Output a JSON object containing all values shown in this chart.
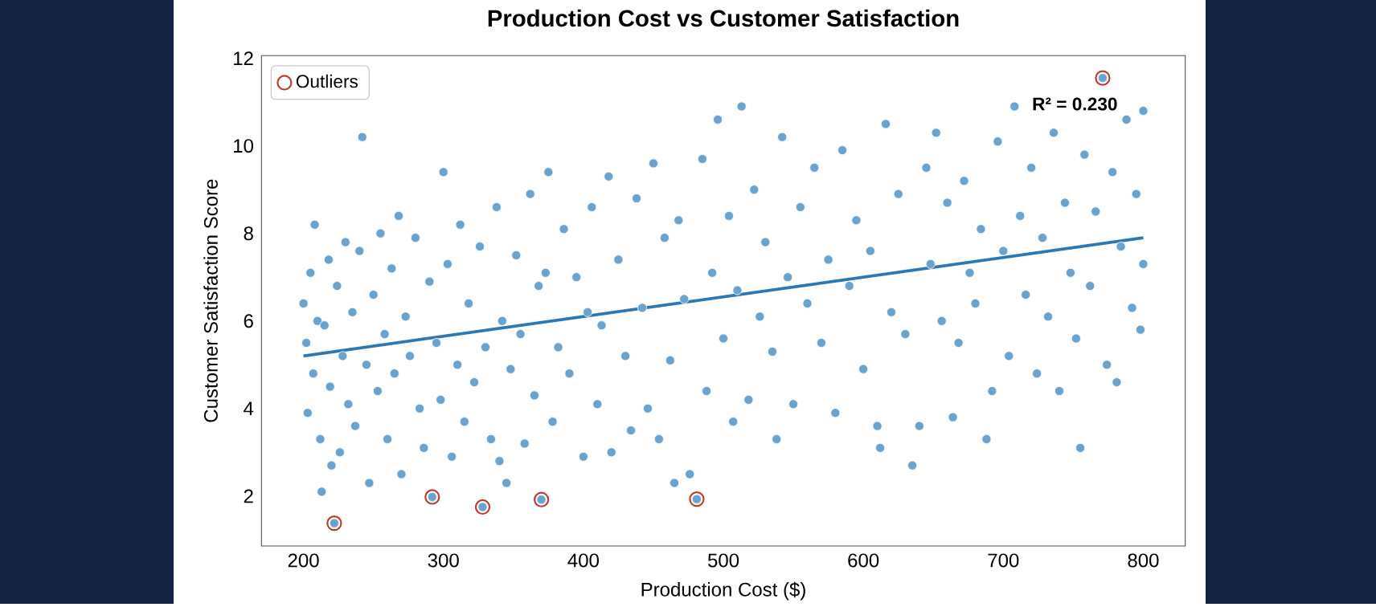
{
  "chart_data": {
    "type": "scatter",
    "title": "Production Cost vs Customer Satisfaction",
    "xlabel": "Production Cost ($)",
    "ylabel": "Customer Satisfaction Score",
    "xlim": [
      170,
      830
    ],
    "ylim": [
      0.86,
      12.06
    ],
    "xticks": [
      200,
      300,
      400,
      500,
      600,
      700,
      800
    ],
    "yticks": [
      2,
      4,
      6,
      8,
      10,
      12
    ],
    "legend": "top left",
    "marker": "circle",
    "annotations": [
      "R² = 0.230"
    ],
    "series": [
      {
        "color": "#6aa3cf",
        "x": [
          200,
          202,
          203,
          205,
          207,
          208,
          210,
          212,
          213,
          215,
          218,
          219,
          220,
          222,
          224,
          226,
          228,
          230,
          232,
          235,
          237,
          240,
          242,
          245,
          247,
          250,
          253,
          255,
          258,
          260,
          263,
          265,
          268,
          270,
          273,
          276,
          280,
          283,
          286,
          290,
          292,
          295,
          298,
          300,
          303,
          306,
          310,
          312,
          315,
          318,
          322,
          326,
          328,
          330,
          334,
          338,
          340,
          342,
          345,
          348,
          352,
          355,
          358,
          362,
          365,
          368,
          370,
          373,
          375,
          378,
          382,
          386,
          390,
          395,
          400,
          403,
          406,
          410,
          413,
          418,
          420,
          425,
          430,
          434,
          438,
          442,
          446,
          450,
          454,
          458,
          462,
          465,
          468,
          472,
          476,
          481,
          485,
          488,
          492,
          496,
          500,
          504,
          507,
          510,
          513,
          518,
          522,
          526,
          530,
          535,
          538,
          542,
          546,
          550,
          555,
          560,
          565,
          570,
          575,
          580,
          585,
          590,
          595,
          600,
          605,
          610,
          612,
          616,
          620,
          625,
          630,
          635,
          640,
          645,
          648,
          652,
          656,
          660,
          664,
          668,
          672,
          676,
          680,
          684,
          688,
          692,
          696,
          700,
          704,
          708,
          712,
          716,
          720,
          724,
          728,
          732,
          736,
          740,
          744,
          748,
          752,
          755,
          758,
          762,
          766,
          771,
          774,
          778,
          781,
          784,
          788,
          792,
          795,
          798,
          800,
          800
        ],
        "values": [
          6.4,
          5.5,
          3.9,
          7.1,
          4.8,
          8.2,
          6.0,
          3.3,
          2.1,
          5.9,
          7.4,
          4.5,
          2.7,
          1.38,
          6.8,
          3.0,
          5.2,
          7.8,
          4.1,
          6.2,
          3.6,
          7.6,
          10.2,
          5.0,
          2.3,
          6.6,
          4.4,
          8.0,
          5.7,
          3.3,
          7.2,
          4.8,
          8.4,
          2.5,
          6.1,
          5.2,
          7.9,
          4.0,
          3.1,
          6.9,
          1.98,
          5.5,
          4.2,
          9.4,
          7.3,
          2.9,
          5.0,
          8.2,
          3.7,
          6.4,
          4.6,
          7.7,
          1.75,
          5.4,
          3.3,
          8.6,
          2.8,
          6.0,
          2.3,
          4.9,
          7.5,
          5.7,
          3.2,
          8.9,
          4.3,
          6.8,
          1.92,
          7.1,
          9.4,
          3.7,
          5.4,
          8.1,
          4.8,
          7.0,
          2.9,
          6.2,
          8.6,
          4.1,
          5.9,
          9.3,
          3.0,
          7.4,
          5.2,
          3.5,
          8.8,
          6.3,
          4.0,
          9.6,
          3.3,
          7.9,
          5.1,
          2.3,
          8.3,
          6.5,
          2.5,
          1.93,
          9.7,
          4.4,
          7.1,
          10.6,
          5.6,
          8.4,
          3.7,
          6.7,
          10.9,
          4.2,
          9.0,
          6.1,
          7.8,
          5.3,
          3.3,
          10.2,
          7.0,
          4.1,
          8.6,
          6.4,
          9.5,
          5.5,
          7.4,
          3.9,
          9.9,
          6.8,
          8.3,
          4.9,
          7.6,
          3.6,
          3.1,
          10.5,
          6.2,
          8.9,
          5.7,
          2.7,
          3.6,
          9.5,
          7.3,
          10.3,
          6.0,
          8.7,
          3.8,
          5.5,
          9.2,
          7.1,
          6.4,
          8.1,
          3.3,
          4.4,
          10.1,
          7.6,
          5.2,
          10.9,
          8.4,
          6.6,
          9.5,
          4.8,
          7.9,
          6.1,
          10.3,
          4.4,
          8.7,
          7.1,
          5.6,
          3.1,
          9.8,
          6.8,
          8.5,
          11.55,
          5.0,
          9.4,
          4.6,
          7.7,
          10.6,
          6.3,
          8.9,
          5.8,
          10.8,
          7.3
        ]
      },
      {
        "name": "Outliers",
        "color": "#c0392b",
        "x": [
          222,
          292,
          328,
          370,
          481,
          771
        ],
        "values": [
          1.38,
          1.98,
          1.75,
          1.92,
          1.93,
          11.55
        ]
      },
      {
        "type": "line",
        "marker": "none",
        "color": "#2a78b5",
        "x": [
          200,
          800
        ],
        "values": [
          5.2,
          7.9
        ]
      }
    ]
  }
}
